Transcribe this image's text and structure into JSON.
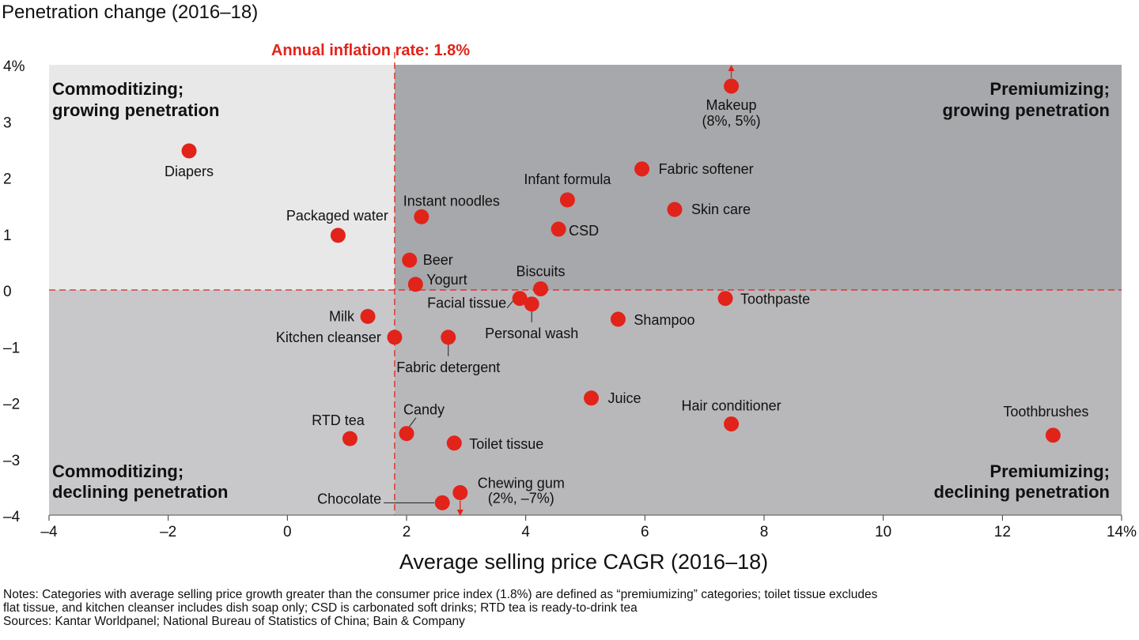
{
  "chart_data": {
    "type": "scatter",
    "ylabel": "Penetration change (2016–18)",
    "xlabel": "Average selling price CAGR (2016–18)",
    "xlim": [
      -4,
      14
    ],
    "ylim": [
      -4,
      4
    ],
    "x_ticks": [
      {
        "value": -4,
        "label": "–4"
      },
      {
        "value": -2,
        "label": "–2"
      },
      {
        "value": 0,
        "label": "0"
      },
      {
        "value": 2,
        "label": "2"
      },
      {
        "value": 4,
        "label": "4"
      },
      {
        "value": 6,
        "label": "6"
      },
      {
        "value": 8,
        "label": "8"
      },
      {
        "value": 10,
        "label": "10"
      },
      {
        "value": 12,
        "label": "12"
      },
      {
        "value": 14,
        "label": "14%"
      }
    ],
    "y_ticks": [
      {
        "value": 4,
        "label": "4%"
      },
      {
        "value": 3,
        "label": "3"
      },
      {
        "value": 2,
        "label": "2"
      },
      {
        "value": 1,
        "label": "1"
      },
      {
        "value": 0,
        "label": "0"
      },
      {
        "value": -1,
        "label": "–1"
      },
      {
        "value": -2,
        "label": "–2"
      },
      {
        "value": -3,
        "label": "–3"
      },
      {
        "value": -4,
        "label": "–4"
      }
    ],
    "inflation_line": {
      "x": 1.8,
      "label": "Annual inflation rate: 1.8%"
    },
    "quadrants": {
      "top_left": [
        "Commoditizing;",
        "growing penetration"
      ],
      "top_right": [
        "Premiumizing;",
        "growing penetration"
      ],
      "bottom_left": [
        "Commoditizing;",
        "declining penetration"
      ],
      "bottom_right": [
        "Premiumizing;",
        "declining penetration"
      ]
    },
    "points": [
      {
        "label": "Diapers",
        "x": -1.65,
        "y": 2.47
      },
      {
        "label": "Packaged water",
        "x": 0.85,
        "y": 0.97
      },
      {
        "label": "Instant noodles",
        "x": 2.25,
        "y": 1.3
      },
      {
        "label": "Beer",
        "x": 2.05,
        "y": 0.53
      },
      {
        "label": "Yogurt",
        "x": 2.15,
        "y": 0.1
      },
      {
        "label": "Infant formula",
        "x": 4.7,
        "y": 1.6
      },
      {
        "label": "CSD",
        "x": 4.55,
        "y": 1.08
      },
      {
        "label": "Fabric softener",
        "x": 5.95,
        "y": 2.15
      },
      {
        "label": "Skin care",
        "x": 6.5,
        "y": 1.43
      },
      {
        "label": "Makeup",
        "sublabel": "(8%, 5%)",
        "x": 7.45,
        "y": 3.62,
        "off_scale": "up"
      },
      {
        "label": "Biscuits",
        "x": 4.25,
        "y": 0.02
      },
      {
        "label": "Facial tissue",
        "x": 3.9,
        "y": -0.15
      },
      {
        "label": "Personal wash",
        "x": 4.1,
        "y": -0.25
      },
      {
        "label": "Toothpaste",
        "x": 7.35,
        "y": -0.15
      },
      {
        "label": "Shampoo",
        "x": 5.55,
        "y": -0.52
      },
      {
        "label": "Milk",
        "x": 1.35,
        "y": -0.47
      },
      {
        "label": "Kitchen cleanser",
        "x": 1.8,
        "y": -0.84
      },
      {
        "label": "Fabric detergent",
        "x": 2.7,
        "y": -0.84
      },
      {
        "label": "Juice",
        "x": 5.1,
        "y": -1.92
      },
      {
        "label": "Hair conditioner",
        "x": 7.45,
        "y": -2.38
      },
      {
        "label": "Toothbrushes",
        "x": 12.85,
        "y": -2.58
      },
      {
        "label": "RTD tea",
        "x": 1.05,
        "y": -2.64
      },
      {
        "label": "Candy",
        "x": 2.0,
        "y": -2.55
      },
      {
        "label": "Toilet tissue",
        "x": 2.8,
        "y": -2.72
      },
      {
        "label": "Chocolate",
        "x": 2.6,
        "y": -3.78
      },
      {
        "label": "Chewing gum",
        "sublabel": "(2%, –7%)",
        "x": 2.9,
        "y": -3.6,
        "off_scale": "down"
      }
    ],
    "colors": {
      "point": "#e2231a",
      "inflation": "#e2231a",
      "quadrant_top_left": "#e8e8e8",
      "quadrant_top_right": "#a7a8ab",
      "quadrant_bottom_left": "#c8c8ca",
      "quadrant_bottom_right": "#b8b8bb"
    }
  },
  "notes": {
    "line1": "Notes: Categories with average selling price growth greater than the consumer price index (1.8%) are defined as “premiumizing” categories; toilet tissue excludes",
    "line2": "flat tissue, and kitchen cleanser includes dish soap only; CSD is carbonated soft drinks; RTD tea is ready-to-drink tea",
    "sources": "Sources: Kantar Worldpanel; National Bureau of Statistics of China; Bain & Company"
  }
}
